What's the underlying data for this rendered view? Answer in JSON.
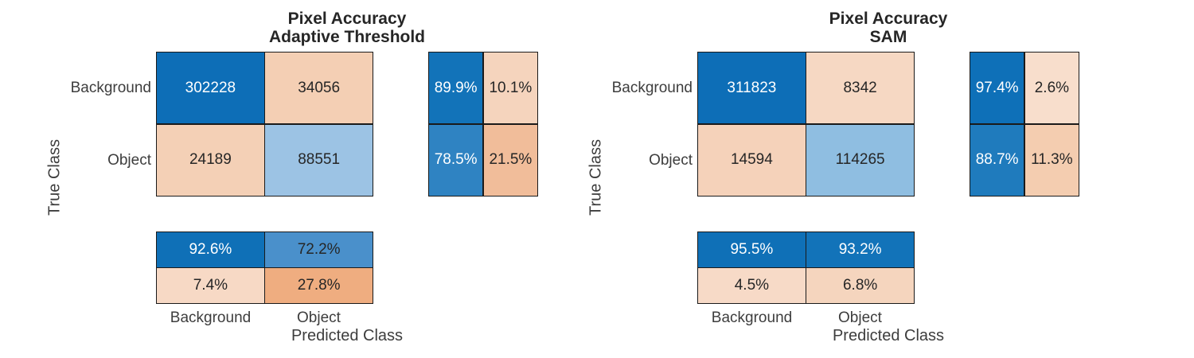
{
  "page": {
    "background": "#ffffff",
    "border_color": "#1a1a1a",
    "label_color": "#3d3d3d",
    "title_color": "#262626"
  },
  "charts": [
    {
      "title_line1": "Pixel Accuracy",
      "title_line2": "Adaptive Threshold",
      "y_axis_label": "True Class",
      "x_axis_label": "Predicted Class",
      "row_labels": [
        "Background",
        "Object"
      ],
      "col_labels": [
        "Background",
        "Object"
      ],
      "main": {
        "cells": [
          {
            "label": "302228",
            "bg": "#0D6EB7",
            "fg": "#ffffff"
          },
          {
            "label": "34056",
            "bg": "#F4CFB4",
            "fg": "#262626"
          },
          {
            "label": "24189",
            "bg": "#F4D0B6",
            "fg": "#262626"
          },
          {
            "label": "88551",
            "bg": "#9CC3E4",
            "fg": "#262626"
          }
        ]
      },
      "col_summary": {
        "cells": [
          {
            "label": "89.9%",
            "bg": "#1273B9",
            "fg": "#ffffff"
          },
          {
            "label": "10.1%",
            "bg": "#F5D4BD",
            "fg": "#262626"
          },
          {
            "label": "78.5%",
            "bg": "#2F83C2",
            "fg": "#ffffff"
          },
          {
            "label": "21.5%",
            "bg": "#F1BD9A",
            "fg": "#262626"
          }
        ]
      },
      "row_summary": {
        "cells": [
          {
            "label": "92.6%",
            "bg": "#0F70B7",
            "fg": "#ffffff"
          },
          {
            "label": "72.2%",
            "bg": "#4A90CB",
            "fg": "#262626"
          },
          {
            "label": "7.4%",
            "bg": "#F7D9C5",
            "fg": "#262626"
          },
          {
            "label": "27.8%",
            "bg": "#EFAD80",
            "fg": "#262626"
          }
        ]
      }
    },
    {
      "title_line1": "Pixel Accuracy",
      "title_line2": "SAM",
      "y_axis_label": "True Class",
      "x_axis_label": "Predicted Class",
      "row_labels": [
        "Background",
        "Object"
      ],
      "col_labels": [
        "Background",
        "Object"
      ],
      "main": {
        "cells": [
          {
            "label": "311823",
            "bg": "#0D6EB7",
            "fg": "#ffffff"
          },
          {
            "label": "8342",
            "bg": "#F6D8C3",
            "fg": "#262626"
          },
          {
            "label": "14594",
            "bg": "#F5D2BA",
            "fg": "#262626"
          },
          {
            "label": "114265",
            "bg": "#8FBEE1",
            "fg": "#262626"
          }
        ]
      },
      "col_summary": {
        "cells": [
          {
            "label": "97.4%",
            "bg": "#0E70B8",
            "fg": "#ffffff"
          },
          {
            "label": "2.6%",
            "bg": "#F8DECC",
            "fg": "#262626"
          },
          {
            "label": "88.7%",
            "bg": "#1F7BBD",
            "fg": "#ffffff"
          },
          {
            "label": "11.3%",
            "bg": "#F4CDB0",
            "fg": "#262626"
          }
        ]
      },
      "row_summary": {
        "cells": [
          {
            "label": "95.5%",
            "bg": "#0F70B7",
            "fg": "#ffffff"
          },
          {
            "label": "93.2%",
            "bg": "#1273B9",
            "fg": "#ffffff"
          },
          {
            "label": "4.5%",
            "bg": "#F7DAC7",
            "fg": "#262626"
          },
          {
            "label": "6.8%",
            "bg": "#F5D5BE",
            "fg": "#262626"
          }
        ]
      }
    }
  ],
  "chart_data": [
    {
      "type": "heatmap",
      "subtype": "confusion-matrix",
      "title": "Pixel Accuracy Adaptive Threshold",
      "xlabel": "Predicted Class",
      "ylabel": "True Class",
      "classes": [
        "Background",
        "Object"
      ],
      "matrix_rows_true_cols_predicted": [
        [
          302228,
          34056
        ],
        [
          24189,
          88551
        ]
      ],
      "row_normalized_percent": [
        [
          89.9,
          10.1
        ],
        [
          78.5,
          21.5
        ]
      ],
      "column_normalized_percent": [
        [
          92.6,
          72.2
        ],
        [
          7.4,
          27.8
        ]
      ],
      "colormap": "blue for correct, orange for errors, intensity by value",
      "legend": "none",
      "grid": "cell borders only"
    },
    {
      "type": "heatmap",
      "subtype": "confusion-matrix",
      "title": "Pixel Accuracy SAM",
      "xlabel": "Predicted Class",
      "ylabel": "True Class",
      "classes": [
        "Background",
        "Object"
      ],
      "matrix_rows_true_cols_predicted": [
        [
          311823,
          8342
        ],
        [
          14594,
          114265
        ]
      ],
      "row_normalized_percent": [
        [
          97.4,
          2.6
        ],
        [
          88.7,
          11.3
        ]
      ],
      "column_normalized_percent": [
        [
          95.5,
          93.2
        ],
        [
          4.5,
          6.8
        ]
      ],
      "colormap": "blue for correct, orange for errors, intensity by value",
      "legend": "none",
      "grid": "cell borders only"
    }
  ]
}
